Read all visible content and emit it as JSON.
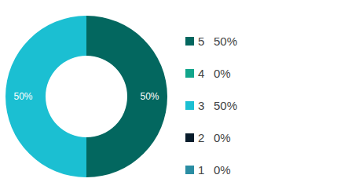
{
  "chart_data": {
    "type": "pie",
    "categories": [
      "5",
      "4",
      "3",
      "2",
      "1"
    ],
    "values": [
      50,
      0,
      50,
      0,
      0
    ],
    "value_labels": [
      "50%",
      "0%",
      "50%",
      "0%",
      "0%"
    ],
    "colors": [
      "#03675f",
      "#12a58b",
      "#1bbfd2",
      "#081c2b",
      "#2a8da3"
    ],
    "data_labels": true,
    "legend": "right"
  }
}
